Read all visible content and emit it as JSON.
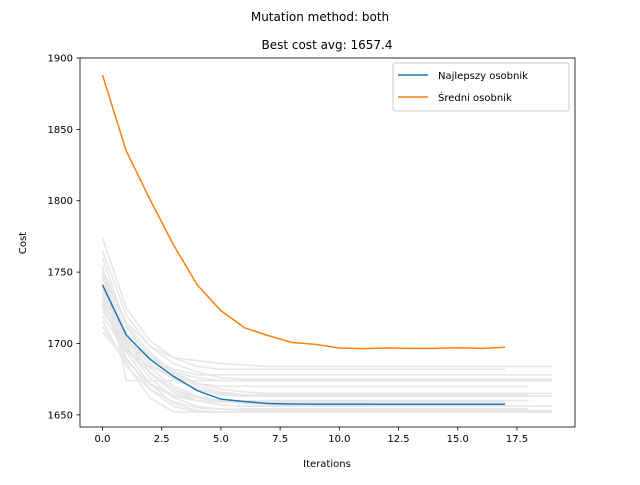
{
  "suptitle": "Mutation method: both",
  "chart_data": {
    "type": "line",
    "title": "Best cost avg: 1657.4",
    "xlabel": "Iterations",
    "ylabel": "Cost",
    "xlim": [
      -0.95,
      19.95
    ],
    "ylim": [
      1641.5,
      1900
    ],
    "xticks": [
      0,
      2.5,
      5,
      7.5,
      10,
      12.5,
      15,
      17.5
    ],
    "xtick_labels": [
      "0.0",
      "2.5",
      "5.0",
      "7.5",
      "10.0",
      "12.5",
      "15.0",
      "17.5"
    ],
    "yticks": [
      1650,
      1700,
      1750,
      1800,
      1850,
      1900
    ],
    "ytick_labels": [
      "1650",
      "1700",
      "1750",
      "1800",
      "1850",
      "1900"
    ],
    "grid": false,
    "legend_position": "top-right",
    "series": [
      {
        "name": "Najlepszy osobnik",
        "color": "#1f77b4",
        "x": [
          0,
          1,
          2,
          3,
          4,
          5,
          6,
          7,
          8,
          9,
          10,
          11,
          12,
          13,
          14,
          15,
          16,
          17
        ],
        "values": [
          1741,
          1706,
          1689,
          1677,
          1667,
          1661,
          1659.3,
          1658,
          1657.6,
          1657.5,
          1657.5,
          1657.5,
          1657.4,
          1657.4,
          1657.4,
          1657.4,
          1657.4,
          1657.4
        ]
      },
      {
        "name": "Średni osobnik",
        "color": "#ff7f0e",
        "x": [
          0,
          1,
          2,
          3,
          4,
          5,
          6,
          7,
          8,
          9,
          10,
          11,
          12,
          13,
          14,
          15,
          16,
          17
        ],
        "values": [
          1888,
          1835,
          1801,
          1769,
          1741,
          1723,
          1711,
          1705.5,
          1700.7,
          1699.4,
          1696.8,
          1696.4,
          1696.8,
          1696.6,
          1696.6,
          1697,
          1696.6,
          1697.4
        ]
      }
    ],
    "background_series_color": "#e6e6e6",
    "background_series": [
      [
        1774,
        1725,
        1702,
        1690,
        1688,
        1686,
        1685,
        1684,
        1684,
        1684,
        1684,
        1684,
        1684,
        1684,
        1684,
        1684,
        1684,
        1684,
        1684,
        1684
      ],
      [
        1765,
        1720,
        1698,
        1686,
        1680,
        1676,
        1675,
        1675,
        1675,
        1675,
        1675,
        1675,
        1675,
        1675,
        1675,
        1675,
        1675,
        1675,
        1675,
        1675
      ],
      [
        1760,
        1712,
        1690,
        1680,
        1676,
        1674,
        1674,
        1674,
        1674,
        1674,
        1674,
        1674,
        1674,
        1674,
        1674,
        1674,
        1674,
        1674,
        1674
      ],
      [
        1755,
        1674,
        1674,
        1674,
        1674,
        1674,
        1674,
        1674,
        1674,
        1674,
        1674,
        1674,
        1674,
        1674,
        1674,
        1674,
        1674,
        1674,
        1674,
        1674
      ],
      [
        1752,
        1715,
        1698,
        1690,
        1684,
        1682,
        1682,
        1682,
        1682,
        1682,
        1682,
        1682,
        1682,
        1682,
        1682,
        1682,
        1682,
        1682
      ],
      [
        1748,
        1708,
        1692,
        1680,
        1672,
        1668,
        1666,
        1665,
        1665,
        1665,
        1665,
        1665,
        1665,
        1665,
        1665,
        1665,
        1665,
        1665,
        1665,
        1665
      ],
      [
        1745,
        1704,
        1686,
        1676,
        1668,
        1664,
        1663,
        1663,
        1663,
        1663,
        1663,
        1663,
        1663,
        1663,
        1663,
        1663,
        1663,
        1663,
        1663,
        1663
      ],
      [
        1742,
        1700,
        1683,
        1670,
        1663,
        1660,
        1660,
        1660,
        1660,
        1660,
        1660,
        1660,
        1660,
        1660,
        1660,
        1660,
        1660,
        1660,
        1660
      ],
      [
        1740,
        1705,
        1680,
        1668,
        1660,
        1657,
        1656,
        1656,
        1656,
        1656,
        1656,
        1656,
        1656,
        1656,
        1656,
        1656,
        1656,
        1656,
        1656,
        1656
      ],
      [
        1738,
        1697,
        1676,
        1662,
        1656,
        1654,
        1653,
        1653,
        1653,
        1653,
        1653,
        1653,
        1653,
        1653,
        1653,
        1653,
        1653,
        1653,
        1653,
        1653
      ],
      [
        1735,
        1694,
        1672,
        1658,
        1653,
        1652,
        1652,
        1652,
        1652,
        1652,
        1652,
        1652,
        1652,
        1652,
        1652,
        1652,
        1652,
        1652,
        1652,
        1652
      ],
      [
        1732,
        1690,
        1668,
        1656,
        1652,
        1652,
        1652,
        1652,
        1652,
        1652,
        1652,
        1652,
        1652,
        1652,
        1652,
        1652,
        1652,
        1652,
        1652
      ],
      [
        1728,
        1688,
        1672,
        1664,
        1660,
        1659,
        1659,
        1659,
        1659,
        1659,
        1659,
        1659,
        1659,
        1659,
        1659,
        1659,
        1659,
        1659
      ],
      [
        1725,
        1696,
        1684,
        1676,
        1672,
        1670,
        1670,
        1670,
        1670,
        1670,
        1670,
        1670,
        1670,
        1670,
        1670,
        1670,
        1670,
        1670,
        1670
      ],
      [
        1722,
        1701,
        1690,
        1682,
        1678,
        1678,
        1678,
        1678,
        1678,
        1678,
        1678,
        1678,
        1678,
        1678,
        1678,
        1678,
        1678,
        1678,
        1678,
        1678
      ],
      [
        1719,
        1695,
        1680,
        1668,
        1662,
        1659,
        1658,
        1657,
        1657,
        1657,
        1657,
        1657,
        1657,
        1657,
        1657,
        1657,
        1657,
        1657
      ],
      [
        1716,
        1684,
        1668,
        1659,
        1655,
        1654,
        1654,
        1654,
        1654,
        1654,
        1654,
        1654,
        1654,
        1654,
        1654,
        1654,
        1654,
        1654,
        1654
      ],
      [
        1712,
        1686,
        1662,
        1652,
        1652,
        1652,
        1652,
        1652,
        1652,
        1652,
        1652,
        1652,
        1652,
        1652,
        1652,
        1652,
        1652,
        1652,
        1652,
        1652
      ],
      [
        1708,
        1689,
        1671,
        1663,
        1660,
        1659,
        1659,
        1659,
        1659,
        1659,
        1659,
        1659,
        1659,
        1659,
        1659,
        1659,
        1659,
        1659
      ],
      [
        1750,
        1713,
        1694,
        1679,
        1670,
        1666,
        1664,
        1664,
        1664,
        1664,
        1664,
        1664,
        1664,
        1664,
        1664,
        1664,
        1664,
        1664,
        1664
      ],
      [
        1737,
        1702,
        1686,
        1675,
        1668,
        1665,
        1664,
        1663,
        1663,
        1663,
        1663,
        1663,
        1663,
        1663,
        1663,
        1663,
        1663,
        1663,
        1663,
        1663
      ],
      [
        1729,
        1698,
        1679,
        1666,
        1660,
        1657,
        1656,
        1656,
        1656,
        1656,
        1656,
        1656,
        1656,
        1656,
        1656,
        1656,
        1656,
        1656,
        1656
      ]
    ]
  }
}
